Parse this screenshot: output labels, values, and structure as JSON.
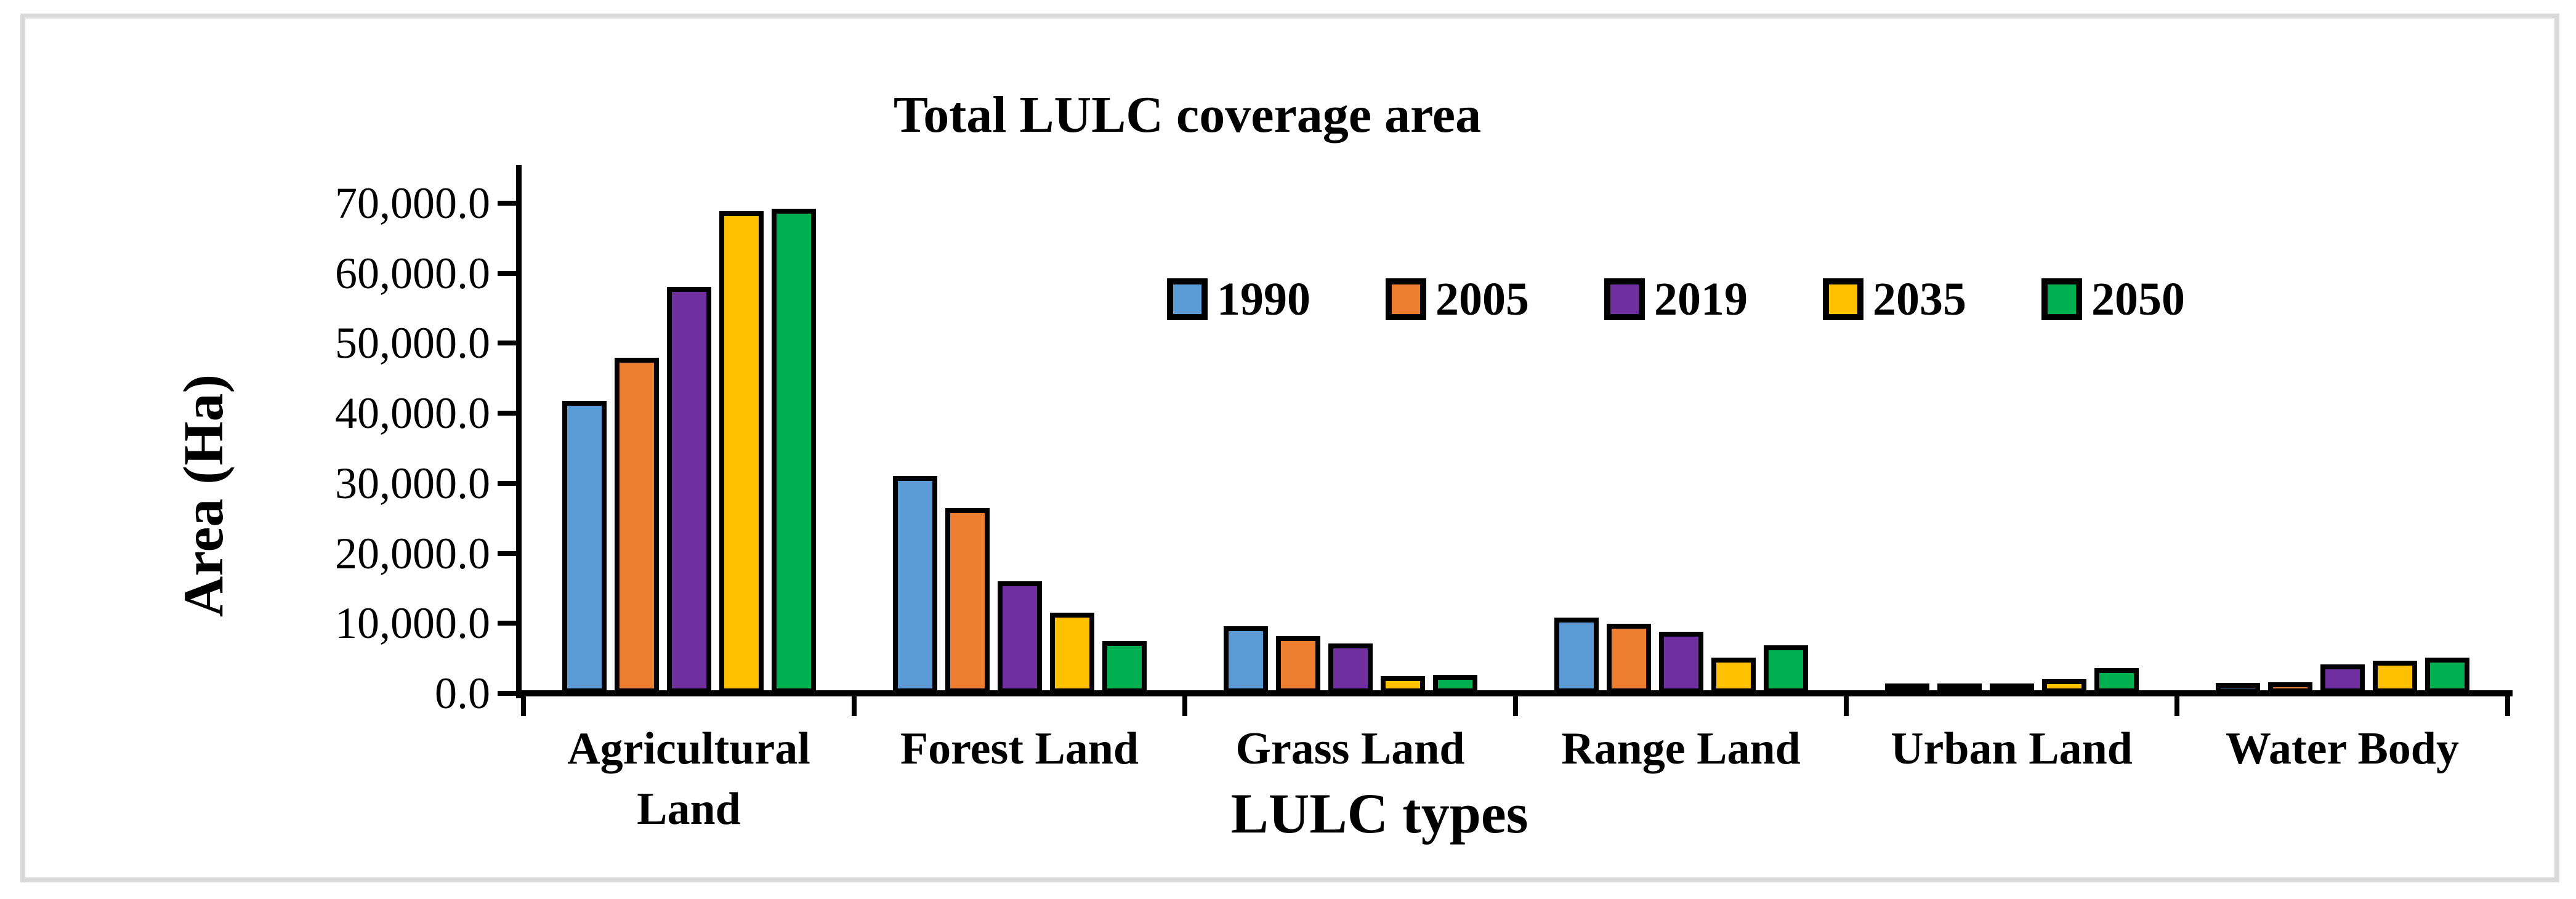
{
  "figure": {
    "title": "Total LULC coverage area",
    "y_axis_title": "Area (Ha)",
    "x_axis_title": "LULC types"
  },
  "colors": {
    "bar_border": "#000000",
    "axis": "#000000",
    "frame_border": "#d9d9d9",
    "background": "#ffffff"
  },
  "chart_data": {
    "type": "bar",
    "title": "Total LULC coverage area",
    "xlabel": "LULC types",
    "ylabel": "Area (Ha)",
    "ylim": [
      0,
      70000
    ],
    "y_tick_step": 10000,
    "y_tick_labels": [
      "0.0",
      "10,000.0",
      "20,000.0",
      "30,000.0",
      "40,000.0",
      "50,000.0",
      "60,000.0",
      "70,000.0"
    ],
    "grid": false,
    "legend_position": "inside-top-center",
    "categories": [
      "Agricultural Land",
      "Forest Land",
      "Grass Land",
      "Range Land",
      "Urban Land",
      "Water Body"
    ],
    "series": [
      {
        "name": "1990",
        "color": "#5B9BD5",
        "values": [
          41800,
          31000,
          9600,
          10800,
          500,
          1500
        ]
      },
      {
        "name": "2005",
        "color": "#ED7D31",
        "values": [
          47900,
          26500,
          8200,
          9900,
          1000,
          1600
        ]
      },
      {
        "name": "2019",
        "color": "#7030A0",
        "values": [
          58000,
          16000,
          7100,
          8800,
          1200,
          4100
        ]
      },
      {
        "name": "2035",
        "color": "#FFC000",
        "values": [
          68900,
          11500,
          2500,
          5100,
          2000,
          4700
        ]
      },
      {
        "name": "2050",
        "color": "#00B050",
        "values": [
          69200,
          7500,
          2600,
          6900,
          3600,
          5100
        ]
      }
    ]
  }
}
